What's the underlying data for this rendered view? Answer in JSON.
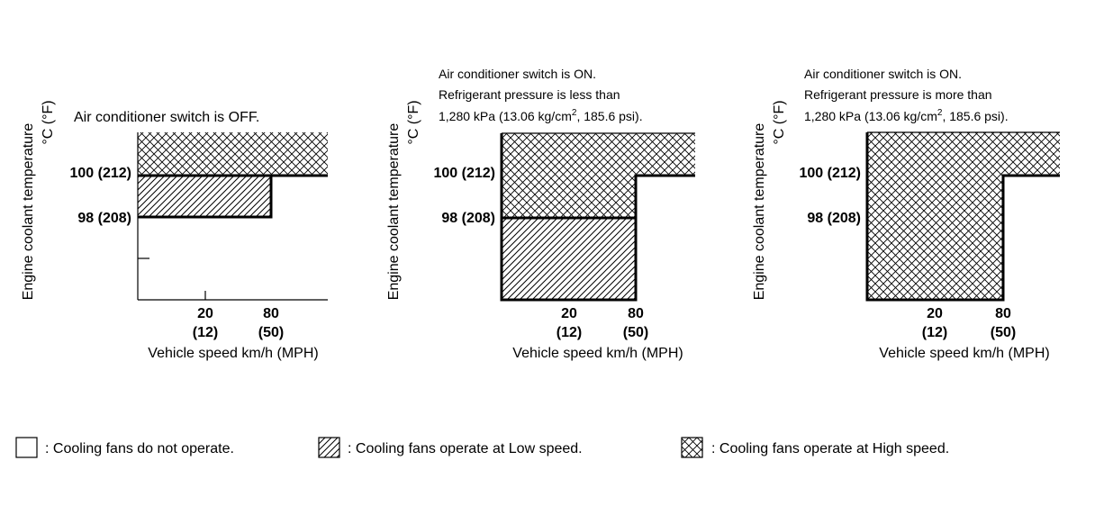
{
  "y_axis_label": "Engine coolant temperature",
  "y_unit": "°C (°F)",
  "y_tick_100": "100 (212)",
  "y_tick_98": "98 (208)",
  "x_tick_20": "20",
  "x_tick_20_mph": "(12)",
  "x_tick_80": "80",
  "x_tick_80_mph": "(50)",
  "x_axis_label": "Vehicle speed km/h (MPH)",
  "panels": [
    {
      "note_1": "Air conditioner switch is OFF."
    },
    {
      "note_1": "Air conditioner switch is ON.",
      "note_2": "Refrigerant pressure is less than",
      "note_3_pre": "1,280 kPa (13.06 kg/cm",
      "note_3_sup": "2",
      "note_3_post": ", 185.6 psi)."
    },
    {
      "note_1": "Air conditioner switch is ON.",
      "note_2": "Refrigerant pressure is more than",
      "note_3_pre": "1,280 kPa (13.06 kg/cm",
      "note_3_sup": "2",
      "note_3_post": ", 185.6 psi)."
    }
  ],
  "legend": {
    "off": ": Cooling fans do not operate.",
    "low": ": Cooling fans operate at Low speed.",
    "high": ": Cooling fans operate at High speed."
  }
}
